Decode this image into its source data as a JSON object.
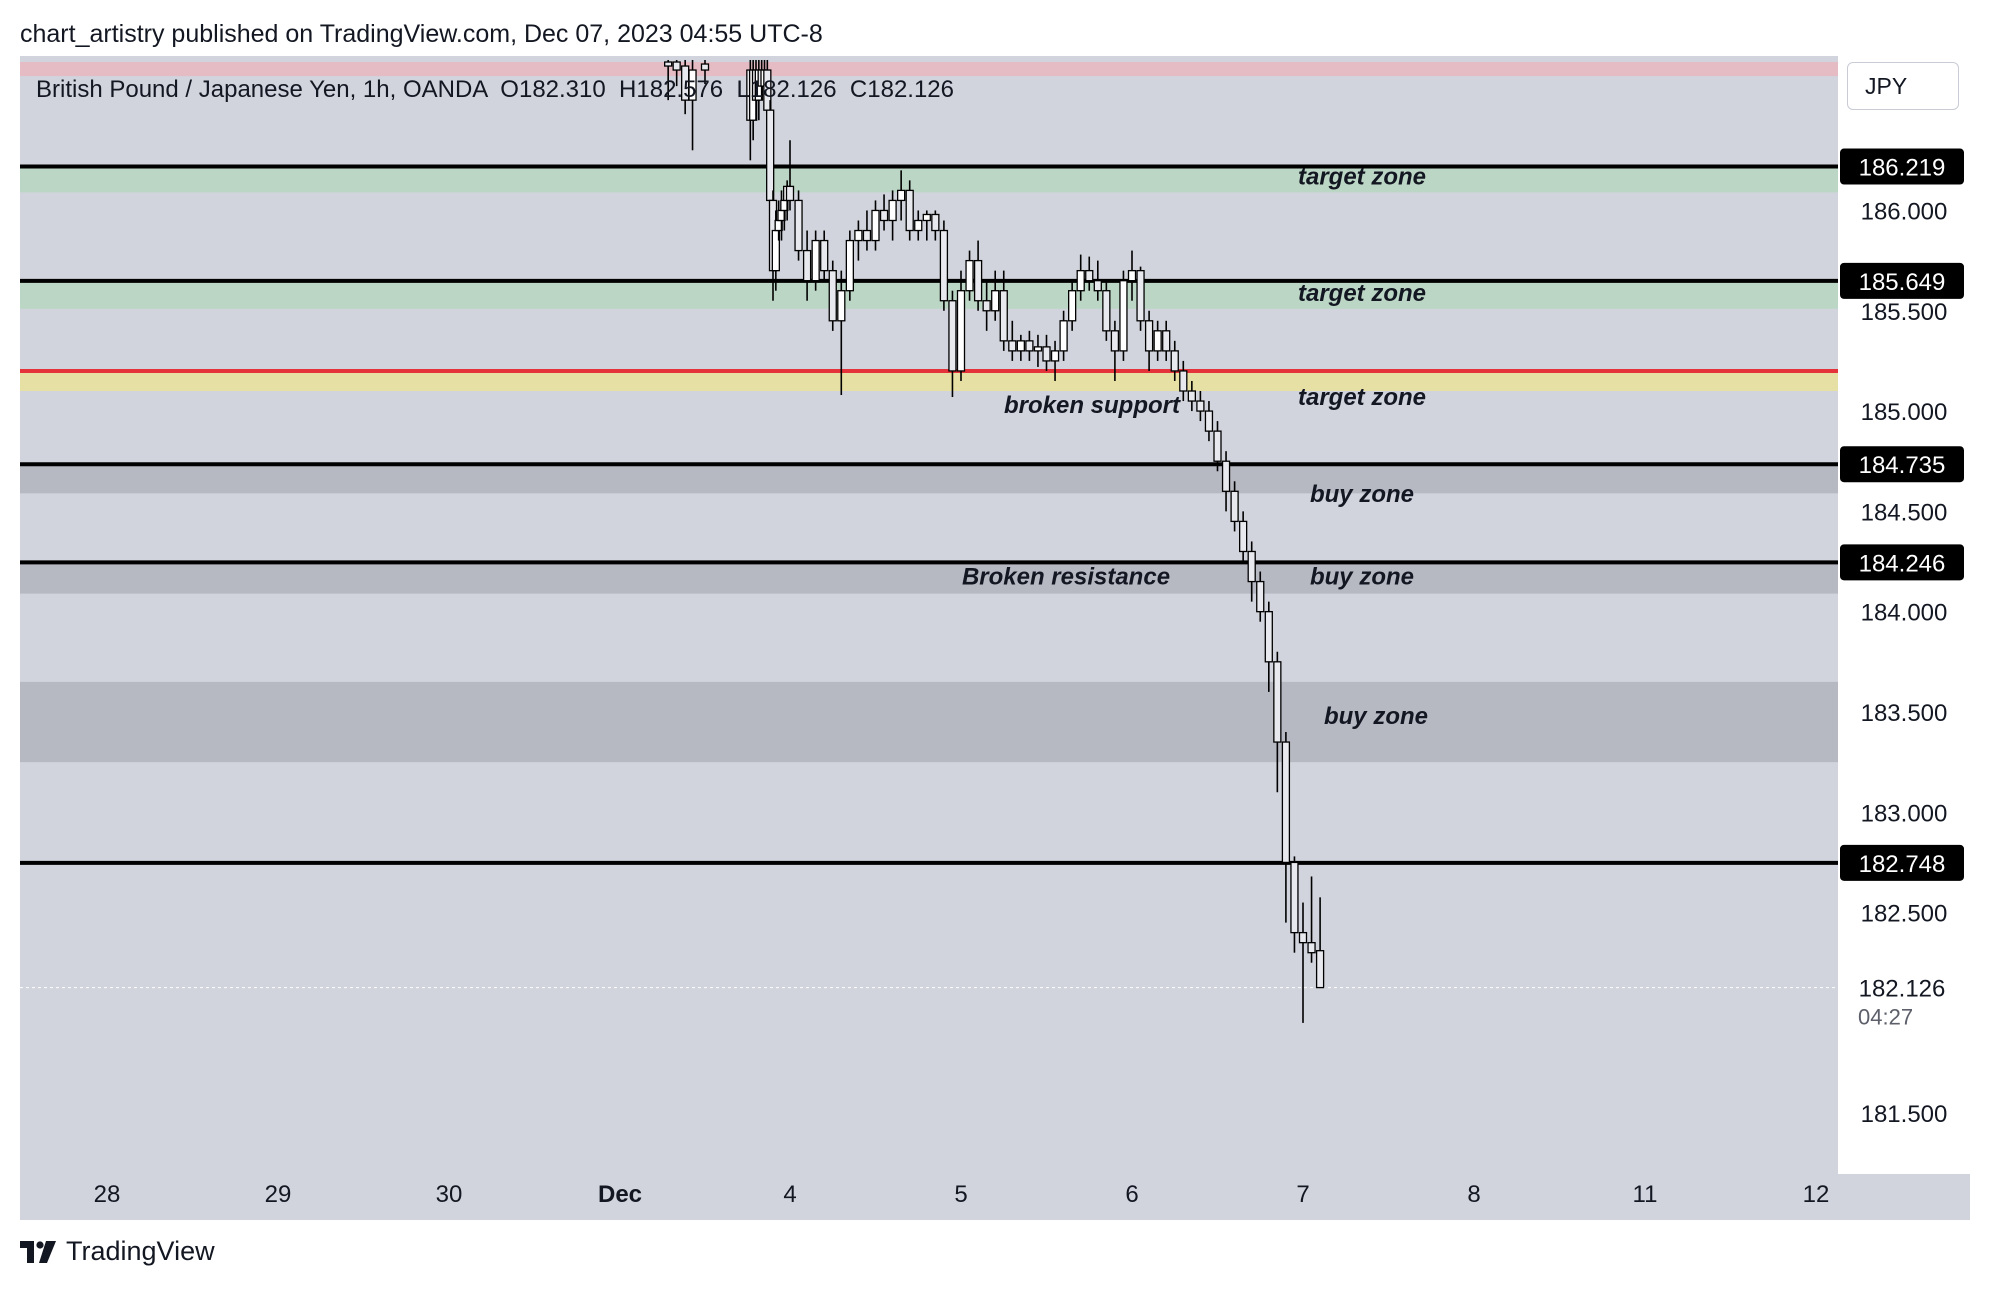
{
  "header": {
    "publisher_line": "chart_artistry published on TradingView.com, Dec 07, 2023 04:55 UTC-8"
  },
  "legend": {
    "symbol_line": "British Pound / Japanese Yen, 1h, OANDA  O182.310  H182.576  L182.126  C182.126"
  },
  "currency_button": {
    "label": "JPY"
  },
  "footer": {
    "brand": "TradingView"
  },
  "colors": {
    "background": "#d1d4dc",
    "target_zone_green": "#bcd6c5",
    "target_zone_yellow": "#e7e0a4",
    "buy_zone_grey": "#b6b8c2",
    "top_band_pink": "#e6bcc4",
    "broken_support_line": "#e5333c",
    "level_line": "#000000"
  },
  "chart_data": {
    "type": "candlestick",
    "symbol": "GBPJPY",
    "timeframe": "1h",
    "ylim": [
      181.5,
      186.77
    ],
    "x_ticks": [
      "28",
      "29",
      "30",
      "Dec",
      "4",
      "5",
      "6",
      "7",
      "8",
      "11",
      "12"
    ],
    "y_ticks": [
      "186.000",
      "185.500",
      "185.000",
      "184.500",
      "184.000",
      "183.500",
      "183.000",
      "182.500",
      "181.500"
    ],
    "levels": [
      {
        "price": 186.219,
        "label": "186.219"
      },
      {
        "price": 185.649,
        "label": "185.649"
      },
      {
        "price": 184.735,
        "label": "184.735"
      },
      {
        "price": 184.246,
        "label": "184.246"
      },
      {
        "price": 182.748,
        "label": "182.748"
      }
    ],
    "broken_support_price": 185.2,
    "zones": [
      {
        "kind": "top-band",
        "from": 186.67,
        "to": 186.74
      },
      {
        "kind": "target",
        "from": 186.09,
        "to": 186.219,
        "label": "target zone"
      },
      {
        "kind": "target",
        "from": 185.51,
        "to": 185.649,
        "label": "target zone"
      },
      {
        "kind": "target-yellow",
        "from": 185.1,
        "to": 185.2,
        "label": "target zone"
      },
      {
        "kind": "buy",
        "from": 184.59,
        "to": 184.735,
        "label": "buy zone"
      },
      {
        "kind": "buy",
        "from": 184.09,
        "to": 184.246,
        "label": "buy zone"
      },
      {
        "kind": "buy",
        "from": 183.25,
        "to": 183.65,
        "label": "buy zone"
      }
    ],
    "annotations": [
      {
        "text": "broken support",
        "price": 185.1
      },
      {
        "text": "Broken resistance",
        "price": 184.2
      }
    ],
    "last_price": {
      "value": "182.126",
      "countdown": "04:27"
    },
    "candles": [
      {
        "d": 1.85,
        "o": 186.74,
        "h": 186.75,
        "l": 186.55,
        "c": 186.72
      },
      {
        "d": 2.0,
        "o": 186.74,
        "h": 186.75,
        "l": 186.62,
        "c": 186.7
      },
      {
        "d": 2.15,
        "o": 186.72,
        "h": 186.75,
        "l": 186.48,
        "c": 186.55
      },
      {
        "d": 2.28,
        "o": 186.55,
        "h": 186.75,
        "l": 186.3,
        "c": 186.7
      },
      {
        "d": 2.5,
        "o": 186.73,
        "h": 186.75,
        "l": 186.63,
        "c": 186.7
      },
      {
        "d": 3.3,
        "o": 186.7,
        "h": 186.75,
        "l": 186.25,
        "c": 186.45
      },
      {
        "d": 3.35,
        "o": 186.45,
        "h": 186.75,
        "l": 186.35,
        "c": 186.7
      },
      {
        "d": 3.4,
        "o": 186.7,
        "h": 186.75,
        "l": 186.45,
        "c": 186.55
      },
      {
        "d": 3.45,
        "o": 186.55,
        "h": 186.75,
        "l": 186.45,
        "c": 186.7
      },
      {
        "d": 3.5,
        "o": 186.7,
        "h": 186.75,
        "l": 186.55,
        "c": 186.62
      },
      {
        "d": 3.55,
        "o": 186.62,
        "h": 186.75,
        "l": 186.5,
        "c": 186.7
      },
      {
        "d": 3.6,
        "o": 186.7,
        "h": 186.75,
        "l": 186.35,
        "c": 186.5
      },
      {
        "d": 3.65,
        "o": 186.5,
        "h": 186.55,
        "l": 186.0,
        "c": 186.05
      },
      {
        "d": 3.7,
        "o": 186.05,
        "h": 186.1,
        "l": 185.55,
        "c": 185.7
      },
      {
        "d": 3.75,
        "o": 185.7,
        "h": 186.0,
        "l": 185.6,
        "c": 185.9
      },
      {
        "d": 3.8,
        "o": 185.9,
        "h": 186.05,
        "l": 185.85,
        "c": 185.95
      },
      {
        "d": 3.85,
        "o": 185.95,
        "h": 186.1,
        "l": 185.85,
        "c": 186.0
      },
      {
        "d": 3.9,
        "o": 186.0,
        "h": 186.1,
        "l": 185.9,
        "c": 186.05
      },
      {
        "d": 3.95,
        "o": 186.05,
        "h": 186.15,
        "l": 185.95,
        "c": 186.12
      },
      {
        "d": 4.0,
        "o": 186.12,
        "h": 186.35,
        "l": 186.0,
        "c": 186.05
      },
      {
        "d": 4.05,
        "o": 186.05,
        "h": 186.1,
        "l": 185.75,
        "c": 185.8
      },
      {
        "d": 4.1,
        "o": 185.8,
        "h": 185.9,
        "l": 185.55,
        "c": 185.65
      },
      {
        "d": 4.15,
        "o": 185.65,
        "h": 185.9,
        "l": 185.6,
        "c": 185.85
      },
      {
        "d": 4.2,
        "o": 185.85,
        "h": 185.9,
        "l": 185.65,
        "c": 185.7
      },
      {
        "d": 4.25,
        "o": 185.7,
        "h": 185.75,
        "l": 185.4,
        "c": 185.45
      },
      {
        "d": 4.3,
        "o": 185.45,
        "h": 185.7,
        "l": 185.08,
        "c": 185.6
      },
      {
        "d": 4.35,
        "o": 185.6,
        "h": 185.9,
        "l": 185.55,
        "c": 185.85
      },
      {
        "d": 4.4,
        "o": 185.85,
        "h": 185.95,
        "l": 185.75,
        "c": 185.9
      },
      {
        "d": 4.45,
        "o": 185.9,
        "h": 186.0,
        "l": 185.8,
        "c": 185.85
      },
      {
        "d": 4.5,
        "o": 185.85,
        "h": 186.05,
        "l": 185.8,
        "c": 186.0
      },
      {
        "d": 4.55,
        "o": 186.0,
        "h": 186.08,
        "l": 185.9,
        "c": 185.95
      },
      {
        "d": 4.6,
        "o": 185.95,
        "h": 186.1,
        "l": 185.85,
        "c": 186.05
      },
      {
        "d": 4.65,
        "o": 186.05,
        "h": 186.2,
        "l": 185.95,
        "c": 186.1
      },
      {
        "d": 4.7,
        "o": 186.1,
        "h": 186.15,
        "l": 185.85,
        "c": 185.9
      },
      {
        "d": 4.75,
        "o": 185.9,
        "h": 186.0,
        "l": 185.85,
        "c": 185.95
      },
      {
        "d": 4.8,
        "o": 185.95,
        "h": 186.0,
        "l": 185.85,
        "c": 185.98
      },
      {
        "d": 4.85,
        "o": 185.98,
        "h": 186.0,
        "l": 185.85,
        "c": 185.9
      },
      {
        "d": 4.9,
        "o": 185.9,
        "h": 185.95,
        "l": 185.5,
        "c": 185.55
      },
      {
        "d": 4.95,
        "o": 185.55,
        "h": 185.6,
        "l": 185.07,
        "c": 185.2
      },
      {
        "d": 5.0,
        "o": 185.2,
        "h": 185.7,
        "l": 185.15,
        "c": 185.6
      },
      {
        "d": 5.05,
        "o": 185.6,
        "h": 185.8,
        "l": 185.55,
        "c": 185.75
      },
      {
        "d": 5.1,
        "o": 185.75,
        "h": 185.85,
        "l": 185.5,
        "c": 185.55
      },
      {
        "d": 5.15,
        "o": 185.55,
        "h": 185.65,
        "l": 185.4,
        "c": 185.5
      },
      {
        "d": 5.2,
        "o": 185.5,
        "h": 185.7,
        "l": 185.45,
        "c": 185.6
      },
      {
        "d": 5.25,
        "o": 185.6,
        "h": 185.7,
        "l": 185.3,
        "c": 185.35
      },
      {
        "d": 5.3,
        "o": 185.35,
        "h": 185.45,
        "l": 185.25,
        "c": 185.3
      },
      {
        "d": 5.35,
        "o": 185.3,
        "h": 185.38,
        "l": 185.25,
        "c": 185.35
      },
      {
        "d": 5.4,
        "o": 185.35,
        "h": 185.4,
        "l": 185.25,
        "c": 185.3
      },
      {
        "d": 5.45,
        "o": 185.3,
        "h": 185.38,
        "l": 185.22,
        "c": 185.32
      },
      {
        "d": 5.5,
        "o": 185.32,
        "h": 185.38,
        "l": 185.2,
        "c": 185.25
      },
      {
        "d": 5.55,
        "o": 185.25,
        "h": 185.35,
        "l": 185.15,
        "c": 185.3
      },
      {
        "d": 5.6,
        "o": 185.3,
        "h": 185.5,
        "l": 185.25,
        "c": 185.45
      },
      {
        "d": 5.65,
        "o": 185.45,
        "h": 185.65,
        "l": 185.4,
        "c": 185.6
      },
      {
        "d": 5.7,
        "o": 185.6,
        "h": 185.78,
        "l": 185.55,
        "c": 185.7
      },
      {
        "d": 5.75,
        "o": 185.7,
        "h": 185.77,
        "l": 185.6,
        "c": 185.65
      },
      {
        "d": 5.8,
        "o": 185.65,
        "h": 185.75,
        "l": 185.55,
        "c": 185.6
      },
      {
        "d": 5.85,
        "o": 185.6,
        "h": 185.65,
        "l": 185.35,
        "c": 185.4
      },
      {
        "d": 5.9,
        "o": 185.4,
        "h": 185.45,
        "l": 185.15,
        "c": 185.3
      },
      {
        "d": 5.95,
        "o": 185.3,
        "h": 185.7,
        "l": 185.25,
        "c": 185.65
      },
      {
        "d": 6.0,
        "o": 185.65,
        "h": 185.8,
        "l": 185.55,
        "c": 185.7
      },
      {
        "d": 6.05,
        "o": 185.7,
        "h": 185.72,
        "l": 185.4,
        "c": 185.45
      },
      {
        "d": 6.1,
        "o": 185.45,
        "h": 185.5,
        "l": 185.2,
        "c": 185.3
      },
      {
        "d": 6.15,
        "o": 185.3,
        "h": 185.45,
        "l": 185.25,
        "c": 185.4
      },
      {
        "d": 6.2,
        "o": 185.4,
        "h": 185.45,
        "l": 185.25,
        "c": 185.3
      },
      {
        "d": 6.25,
        "o": 185.3,
        "h": 185.35,
        "l": 185.15,
        "c": 185.2
      },
      {
        "d": 6.3,
        "o": 185.2,
        "h": 185.25,
        "l": 185.05,
        "c": 185.1
      },
      {
        "d": 6.35,
        "o": 185.1,
        "h": 185.15,
        "l": 185.0,
        "c": 185.05
      },
      {
        "d": 6.4,
        "o": 185.05,
        "h": 185.1,
        "l": 184.95,
        "c": 185.0
      },
      {
        "d": 6.45,
        "o": 185.0,
        "h": 185.05,
        "l": 184.85,
        "c": 184.9
      },
      {
        "d": 6.5,
        "o": 184.9,
        "h": 184.95,
        "l": 184.7,
        "c": 184.75
      },
      {
        "d": 6.55,
        "o": 184.75,
        "h": 184.8,
        "l": 184.5,
        "c": 184.6
      },
      {
        "d": 6.6,
        "o": 184.6,
        "h": 184.65,
        "l": 184.4,
        "c": 184.45
      },
      {
        "d": 6.65,
        "o": 184.45,
        "h": 184.5,
        "l": 184.25,
        "c": 184.3
      },
      {
        "d": 6.7,
        "o": 184.3,
        "h": 184.35,
        "l": 184.05,
        "c": 184.15
      },
      {
        "d": 6.75,
        "o": 184.15,
        "h": 184.2,
        "l": 183.95,
        "c": 184.0
      },
      {
        "d": 6.8,
        "o": 184.0,
        "h": 184.05,
        "l": 183.6,
        "c": 183.75
      },
      {
        "d": 6.85,
        "o": 183.75,
        "h": 183.8,
        "l": 183.1,
        "c": 183.35
      },
      {
        "d": 6.9,
        "o": 183.35,
        "h": 183.4,
        "l": 182.45,
        "c": 182.75
      },
      {
        "d": 6.95,
        "o": 182.75,
        "h": 182.78,
        "l": 182.3,
        "c": 182.4
      },
      {
        "d": 7.0,
        "o": 182.4,
        "h": 182.55,
        "l": 181.95,
        "c": 182.35
      },
      {
        "d": 7.05,
        "o": 182.35,
        "h": 182.68,
        "l": 182.25,
        "c": 182.3
      },
      {
        "d": 7.1,
        "o": 182.31,
        "h": 182.576,
        "l": 182.126,
        "c": 182.126
      }
    ]
  }
}
